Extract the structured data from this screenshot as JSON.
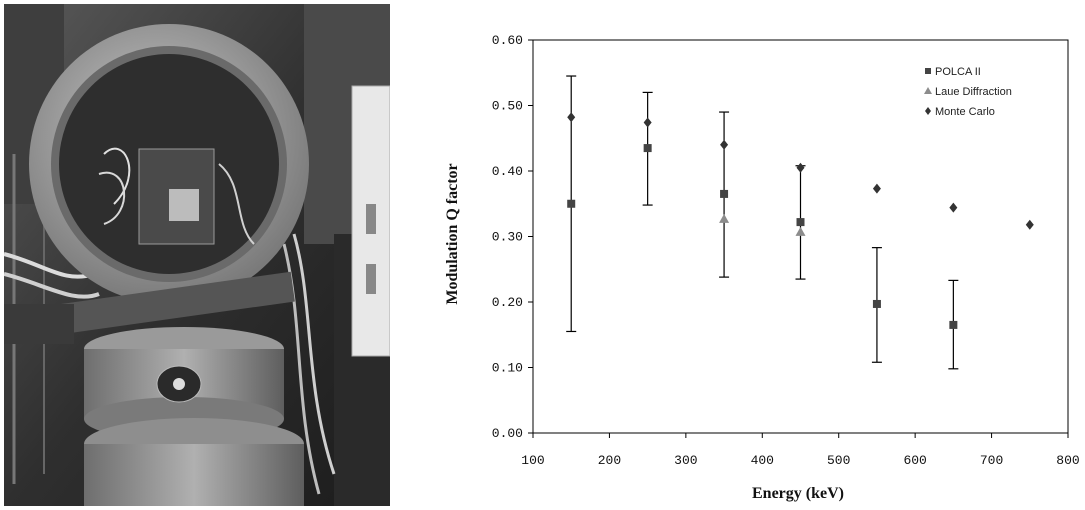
{
  "chart_data": {
    "type": "scatter",
    "title": "",
    "xlabel": "Energy (keV)",
    "ylabel": "Modulation Q factor",
    "xlim": [
      100,
      800
    ],
    "ylim": [
      0.0,
      0.6
    ],
    "x_ticks": [
      "100",
      "200",
      "300",
      "400",
      "500",
      "600",
      "700",
      "800"
    ],
    "y_ticks": [
      "0.00",
      "0.10",
      "0.20",
      "0.30",
      "0.40",
      "0.50",
      "0.60"
    ],
    "grid": false,
    "legend_position": "top-right",
    "series": [
      {
        "name": "POLCA II",
        "marker": "square",
        "color": "#444444",
        "points": [
          {
            "x": 150,
            "y": 0.35,
            "err_low": 0.155,
            "err_high": 0.545
          },
          {
            "x": 250,
            "y": 0.435,
            "err_low": 0.348,
            "err_high": 0.52
          },
          {
            "x": 350,
            "y": 0.365,
            "err_low": 0.238,
            "err_high": 0.49
          },
          {
            "x": 450,
            "y": 0.322,
            "err_low": 0.235,
            "err_high": 0.408
          },
          {
            "x": 550,
            "y": 0.197,
            "err_low": 0.108,
            "err_high": 0.283
          },
          {
            "x": 650,
            "y": 0.165,
            "err_low": 0.098,
            "err_high": 0.233
          }
        ]
      },
      {
        "name": "Laue Diffraction",
        "marker": "triangle",
        "color": "#8c8c8c",
        "points": [
          {
            "x": 350,
            "y": 0.327
          },
          {
            "x": 450,
            "y": 0.307
          }
        ]
      },
      {
        "name": "Monte Carlo",
        "marker": "diamond",
        "color": "#333333",
        "points": [
          {
            "x": 150,
            "y": 0.482
          },
          {
            "x": 250,
            "y": 0.474
          },
          {
            "x": 350,
            "y": 0.44
          },
          {
            "x": 450,
            "y": 0.405
          },
          {
            "x": 550,
            "y": 0.373
          },
          {
            "x": 650,
            "y": 0.344
          },
          {
            "x": 750,
            "y": 0.318
          }
        ]
      }
    ]
  }
}
